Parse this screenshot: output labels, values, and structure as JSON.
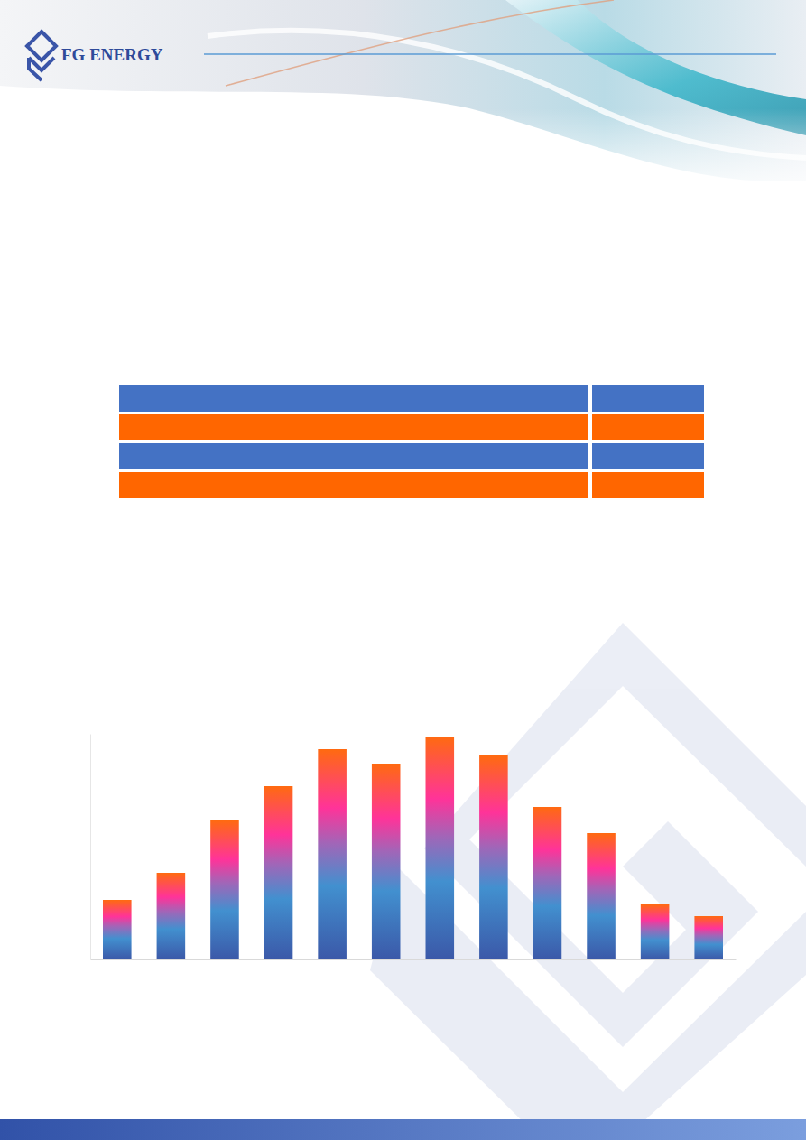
{
  "header": {
    "brand": "FG ENERGY"
  },
  "chart_data": {
    "type": "bar",
    "categories": [
      null,
      null,
      null,
      null,
      null,
      null,
      null,
      null,
      null,
      null,
      null,
      null
    ],
    "values": [
      66,
      96,
      154,
      192,
      233,
      217,
      247,
      226,
      169,
      140,
      61,
      48
    ],
    "ylim": [
      0,
      250
    ],
    "tick_labels": false,
    "grid": false
  }
}
